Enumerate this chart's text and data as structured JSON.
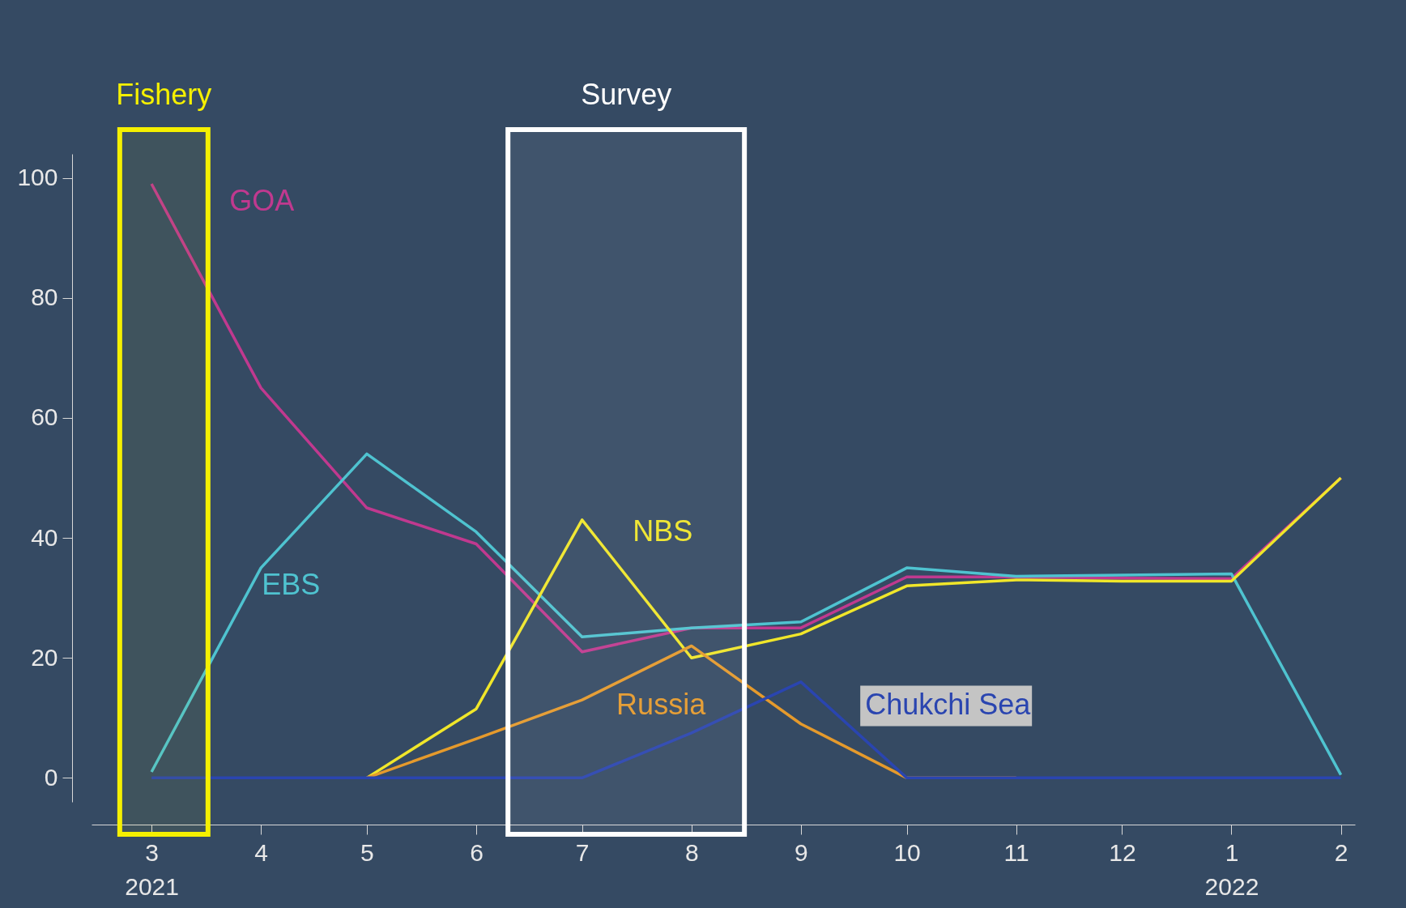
{
  "chart_data": {
    "type": "line",
    "x": [
      "2021-03",
      "2021-04",
      "2021-05",
      "2021-06",
      "2021-07",
      "2021-08",
      "2021-09",
      "2021-10",
      "2021-11",
      "2021-12",
      "2022-01",
      "2022-02"
    ],
    "xlim": [
      "2021-02-12",
      "2022-02-05"
    ],
    "xticks": [
      {
        "value": "2021-03",
        "label": "3\n2021"
      },
      {
        "value": "2021-04",
        "label": "4"
      },
      {
        "value": "2021-05",
        "label": "5"
      },
      {
        "value": "2021-06",
        "label": "6"
      },
      {
        "value": "2021-07",
        "label": "7"
      },
      {
        "value": "2021-08",
        "label": "8"
      },
      {
        "value": "2021-09",
        "label": "9"
      },
      {
        "value": "2021-10",
        "label": "10"
      },
      {
        "value": "2021-11",
        "label": "11"
      },
      {
        "value": "2021-12",
        "label": "12"
      },
      {
        "value": "2022-01",
        "label": "1\n2022"
      },
      {
        "value": "2022-02",
        "label": "2"
      }
    ],
    "ylim": [
      -4,
      104
    ],
    "yticks": [
      0,
      20,
      40,
      60,
      80,
      100
    ],
    "grid": false,
    "legend": false,
    "series": [
      {
        "name": "GOA",
        "color": "#c0398f",
        "values": [
          99,
          65,
          45,
          39,
          21,
          25,
          25,
          33.5,
          33.5,
          33.3,
          33.2,
          50
        ]
      },
      {
        "name": "EBS",
        "color": "#4fc3d0",
        "values": [
          1,
          35,
          54,
          41,
          23.5,
          25,
          26,
          35,
          33.6,
          33.8,
          34,
          0.5
        ]
      },
      {
        "name": "NBS",
        "color": "#f0e62a",
        "values": [
          null,
          null,
          0,
          11.5,
          43,
          20,
          24,
          32,
          33,
          32.8,
          32.8,
          50
        ]
      },
      {
        "name": "Russia",
        "color": "#e59a2c",
        "values": [
          null,
          null,
          0,
          6.5,
          13,
          22,
          9,
          0,
          0,
          null,
          null,
          null
        ]
      },
      {
        "name": "Chukchi Sea",
        "color": "#2a45b0",
        "values": [
          0,
          0,
          0,
          0,
          0,
          7.5,
          16,
          0,
          0,
          0,
          0,
          0
        ]
      }
    ],
    "bands": [
      {
        "axis": "x",
        "from": "2021-02-20",
        "to": "2021-03-17",
        "label": "Fishery",
        "color": "#f5f000"
      },
      {
        "axis": "x",
        "from": "2021-06-10",
        "to": "2021-08-16",
        "label": "Survey",
        "color": "#ffffff"
      }
    ]
  }
}
